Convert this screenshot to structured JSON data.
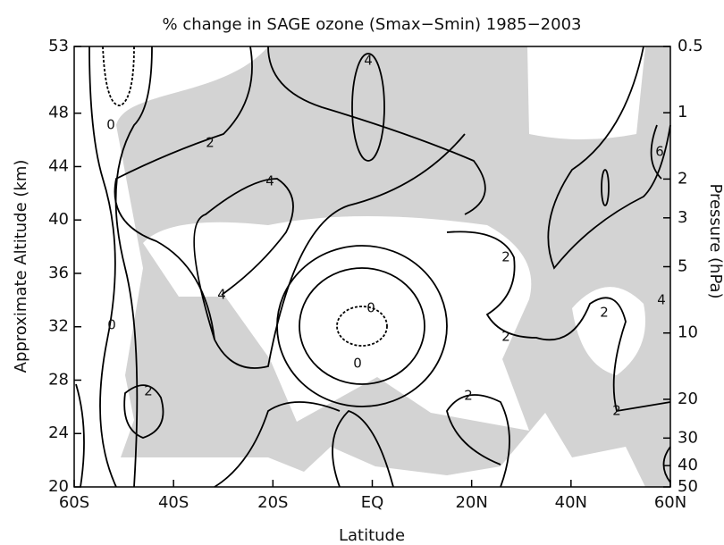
{
  "chart_data": {
    "type": "contour",
    "title": "% change in SAGE ozone (Smax−Smin) 1985−2003",
    "x_label": "Latitude",
    "y_label": "Approximate Altitude (km)",
    "y2_label": "Pressure (hPa)",
    "xlim": [
      -60,
      60
    ],
    "xticks": [
      {
        "value": -60,
        "label": "60S"
      },
      {
        "value": -40,
        "label": "40S"
      },
      {
        "value": -20,
        "label": "20S"
      },
      {
        "value": 0,
        "label": "EQ"
      },
      {
        "value": 20,
        "label": "20N"
      },
      {
        "value": 40,
        "label": "40N"
      },
      {
        "value": 60,
        "label": "60N"
      }
    ],
    "ylim": [
      20,
      53
    ],
    "yticks": [
      20,
      24,
      28,
      32,
      36,
      40,
      44,
      48,
      53
    ],
    "y2lim": [
      50,
      0.5
    ],
    "y2scale": "log",
    "y2ticks": [
      0.5,
      1,
      2,
      3,
      5,
      10,
      20,
      30,
      40,
      50
    ],
    "contour_labels": [
      4,
      0,
      2,
      4,
      6,
      2,
      0,
      4,
      0,
      2,
      2,
      0,
      2,
      2,
      2,
      4
    ],
    "shading_color": "#d3d3d3"
  }
}
